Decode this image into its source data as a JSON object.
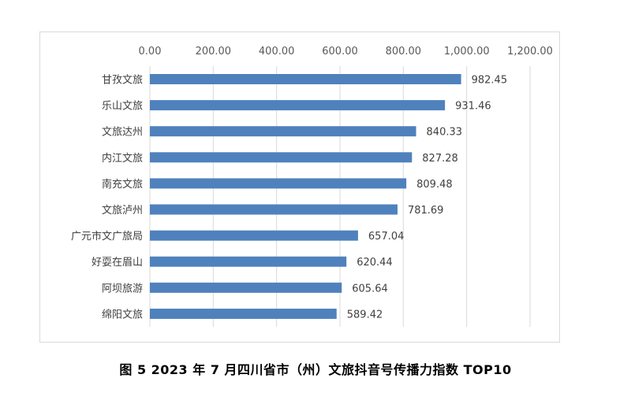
{
  "caption": "图 5   2023 年 7 月四川省市（州）文旅抖音号传播力指数 TOP10",
  "chart_data": {
    "type": "bar",
    "orientation": "horizontal",
    "title": "",
    "xlabel": "",
    "ylabel": "",
    "xlim": [
      0,
      1200
    ],
    "x_ticks": [
      "0.00",
      "200.00",
      "400.00",
      "600.00",
      "800.00",
      "1,000.00",
      "1,200.00"
    ],
    "x_tick_values": [
      0,
      200,
      400,
      600,
      800,
      1000,
      1200
    ],
    "x_axis_position": "top",
    "grid": true,
    "legend": "none",
    "bar_color": "#4f81bd",
    "categories": [
      "甘孜文旅",
      "乐山文旅",
      "文旅达州",
      "内江文旅",
      "南充文旅",
      "文旅泸州",
      "广元市文广旅局",
      "好耍在眉山",
      "阿坝旅游",
      "绵阳文旅"
    ],
    "values": [
      982.45,
      931.46,
      840.33,
      827.28,
      809.48,
      781.69,
      657.04,
      620.44,
      605.64,
      589.42
    ],
    "value_labels": [
      "982.45",
      "931.46",
      "840.33",
      "827.28",
      "809.48",
      "781.69",
      "657.04",
      "620.44",
      "605.64",
      "589.42"
    ]
  }
}
